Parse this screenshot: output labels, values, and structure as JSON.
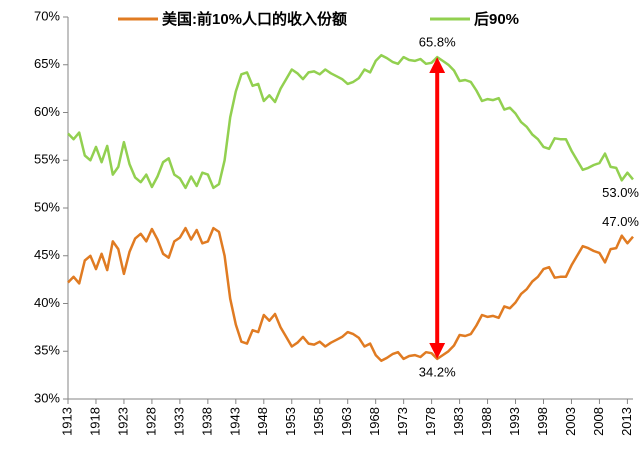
{
  "chart_data": {
    "type": "line",
    "x": [
      1913,
      1914,
      1915,
      1916,
      1917,
      1918,
      1919,
      1920,
      1921,
      1922,
      1923,
      1924,
      1925,
      1926,
      1927,
      1928,
      1929,
      1930,
      1931,
      1932,
      1933,
      1934,
      1935,
      1936,
      1937,
      1938,
      1939,
      1940,
      1941,
      1942,
      1943,
      1944,
      1945,
      1946,
      1947,
      1948,
      1949,
      1950,
      1951,
      1952,
      1953,
      1954,
      1955,
      1956,
      1957,
      1958,
      1959,
      1960,
      1961,
      1962,
      1963,
      1964,
      1965,
      1966,
      1967,
      1968,
      1969,
      1970,
      1971,
      1972,
      1973,
      1974,
      1975,
      1976,
      1977,
      1978,
      1979,
      1980,
      1981,
      1982,
      1983,
      1984,
      1985,
      1986,
      1987,
      1988,
      1989,
      1990,
      1991,
      1992,
      1993,
      1994,
      1995,
      1996,
      1997,
      1998,
      1999,
      2000,
      2001,
      2002,
      2003,
      2004,
      2005,
      2006,
      2007,
      2008,
      2009,
      2010,
      2011,
      2012,
      2013,
      2014
    ],
    "series": [
      {
        "name": "美国:前10%人口的收入份额",
        "color": "#e07b22",
        "values": [
          42.2,
          42.8,
          42.1,
          44.5,
          45.0,
          43.6,
          45.2,
          43.5,
          46.5,
          45.7,
          43.1,
          45.4,
          46.8,
          47.3,
          46.5,
          47.8,
          46.7,
          45.2,
          44.8,
          46.5,
          46.9,
          47.9,
          46.7,
          47.7,
          46.3,
          46.5,
          47.9,
          47.5,
          45.0,
          40.5,
          37.8,
          36.0,
          35.8,
          37.2,
          37.0,
          38.8,
          38.2,
          38.9,
          37.5,
          36.5,
          35.5,
          35.9,
          36.5,
          35.8,
          35.7,
          36.0,
          35.5,
          35.9,
          36.2,
          36.5,
          37.0,
          36.8,
          36.4,
          35.5,
          35.8,
          34.6,
          34.0,
          34.3,
          34.7,
          34.9,
          34.2,
          34.5,
          34.6,
          34.4,
          34.9,
          34.8,
          34.2,
          34.6,
          35.0,
          35.6,
          36.7,
          36.6,
          36.8,
          37.7,
          38.8,
          38.6,
          38.7,
          38.5,
          39.7,
          39.5,
          40.1,
          41.0,
          41.5,
          42.3,
          42.8,
          43.6,
          43.8,
          42.7,
          42.8,
          42.8,
          44.0,
          45.0,
          46.0,
          45.8,
          45.5,
          45.3,
          44.3,
          45.7,
          45.8,
          47.1,
          46.3,
          47.0
        ]
      },
      {
        "name": "后90%",
        "color": "#92d050",
        "values": [
          57.8,
          57.2,
          57.9,
          55.5,
          55.0,
          56.4,
          54.8,
          56.5,
          53.5,
          54.3,
          56.9,
          54.6,
          53.2,
          52.7,
          53.5,
          52.2,
          53.3,
          54.8,
          55.2,
          53.5,
          53.1,
          52.1,
          53.3,
          52.3,
          53.7,
          53.5,
          52.1,
          52.5,
          55.0,
          59.5,
          62.2,
          64.0,
          64.2,
          62.8,
          63.0,
          61.2,
          61.8,
          61.1,
          62.5,
          63.5,
          64.5,
          64.1,
          63.5,
          64.2,
          64.3,
          64.0,
          64.5,
          64.1,
          63.8,
          63.5,
          63.0,
          63.2,
          63.6,
          64.5,
          64.2,
          65.4,
          66.0,
          65.7,
          65.3,
          65.1,
          65.8,
          65.5,
          65.4,
          65.6,
          65.1,
          65.2,
          65.8,
          65.4,
          65.0,
          64.4,
          63.3,
          63.4,
          63.2,
          62.3,
          61.2,
          61.4,
          61.3,
          61.5,
          60.3,
          60.5,
          59.9,
          59.0,
          58.5,
          57.7,
          57.2,
          56.4,
          56.2,
          57.3,
          57.2,
          57.2,
          56.0,
          55.0,
          54.0,
          54.2,
          54.5,
          54.7,
          55.7,
          54.3,
          54.2,
          52.9,
          53.7,
          53.0
        ]
      }
    ],
    "xlim": [
      1913,
      2014
    ],
    "xticks": [
      1913,
      1918,
      1923,
      1928,
      1933,
      1938,
      1943,
      1948,
      1953,
      1958,
      1963,
      1968,
      1973,
      1978,
      1983,
      1988,
      1993,
      1998,
      2003,
      2008,
      2013
    ],
    "ylim": [
      30,
      70
    ],
    "yticks": [
      {
        "value": 30,
        "label": "30%"
      },
      {
        "value": 35,
        "label": "35%"
      },
      {
        "value": 40,
        "label": "40%"
      },
      {
        "value": 45,
        "label": "45%"
      },
      {
        "value": 50,
        "label": "50%"
      },
      {
        "value": 55,
        "label": "55%"
      },
      {
        "value": 60,
        "label": "60%"
      },
      {
        "value": 65,
        "label": "65%"
      },
      {
        "value": 70,
        "label": "70%"
      }
    ],
    "annotations": [
      {
        "text": "65.8%",
        "x": 1979,
        "y": 65.8
      },
      {
        "text": "34.2%",
        "x": 1979,
        "y": 34.2
      },
      {
        "text": "53.0%",
        "x": 2014,
        "y": 53.0
      },
      {
        "text": "47.0%",
        "x": 2014,
        "y": 47.0
      }
    ],
    "legend": "top",
    "grid": false
  }
}
